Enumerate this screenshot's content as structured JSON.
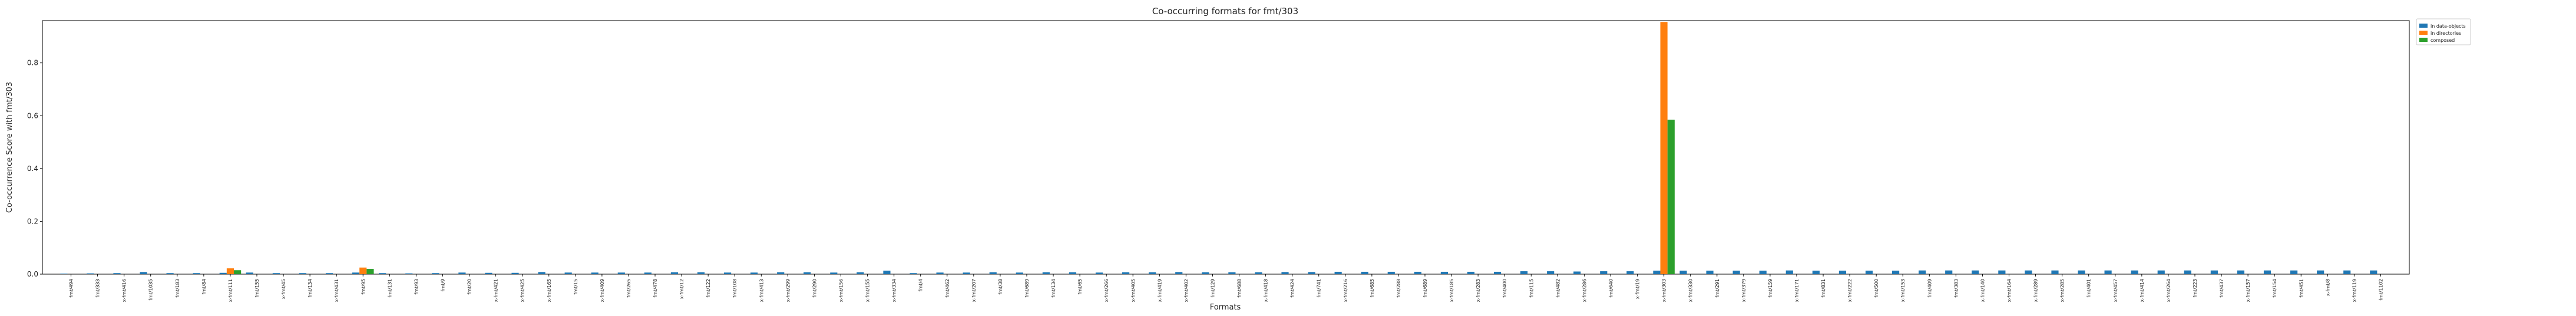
{
  "chart_data": {
    "type": "bar",
    "title": "Co-occurring formats for fmt/303",
    "xlabel": "Formats",
    "ylabel": "Co-occurrence Score with fmt/303",
    "ylim": [
      0,
      0.96
    ],
    "yticks": [
      0.0,
      0.2,
      0.4,
      0.6,
      0.8
    ],
    "ytick_labels": [
      "0.0",
      "0.2",
      "0.4",
      "0.6",
      "0.8"
    ],
    "legend_position": "outside-top-right",
    "colors": {
      "in data-objects": "#1f77b4",
      "in directories": "#ff7f0e",
      "composed": "#2ca02c"
    },
    "categories": [
      "fmt/494",
      "fmt/333",
      "x-fmt/416",
      "fmt/1035",
      "fmt/183",
      "fmt/84",
      "x-fmt/111",
      "fmt/155",
      "x-fmt/45",
      "fmt/134",
      "x-fmt/431",
      "fmt/95",
      "fmt/131",
      "fmt/93",
      "fmt/9",
      "fmt/20",
      "x-fmt/421",
      "x-fmt/425",
      "x-fmt/165",
      "fmt/15",
      "x-fmt/409",
      "fmt/265",
      "fmt/478",
      "x-fmt/12",
      "fmt/122",
      "fmt/108",
      "x-fmt/413",
      "x-fmt/299",
      "fmt/290",
      "x-fmt/156",
      "x-fmt/155",
      "x-fmt/334",
      "fmt/4",
      "fmt/462",
      "x-fmt/207",
      "fmt/38",
      "fmt/689",
      "fmt/134",
      "fmt/65",
      "x-fmt/266",
      "x-fmt/405",
      "x-fmt/419",
      "x-fmt/402",
      "fmt/129",
      "fmt/688",
      "x-fmt/418",
      "fmt/424",
      "fmt/741",
      "x-fmt/216",
      "fmt/685",
      "fmt/288",
      "fmt/689",
      "x-fmt/185",
      "x-fmt/283",
      "fmt/400",
      "fmt/115",
      "fmt/482",
      "x-fmt/286",
      "fmt/640",
      "x-fmt/19",
      "x-fmt/303",
      "x-fmt/330",
      "fmt/291",
      "x-fmt/379",
      "fmt/159",
      "x-fmt/171",
      "fmt/831",
      "x-fmt/222",
      "fmt/500",
      "x-fmt/153",
      "fmt/409",
      "fmt/383",
      "x-fmt/140",
      "x-fmt/164",
      "x-fmt/289",
      "x-fmt/285",
      "fmt/401",
      "x-fmt/457",
      "x-fmt/414",
      "x-fmt/264",
      "fmt/223",
      "fmt/437",
      "x-fmt/157",
      "fmt/154",
      "fmt/451",
      "x-fmt/8",
      "x-fmt/119",
      "fmt/1102"
    ],
    "series": [
      {
        "name": "in data-objects",
        "values": [
          0.002,
          0.003,
          0.004,
          0.008,
          0.004,
          0.004,
          0.005,
          0.006,
          0.004,
          0.004,
          0.004,
          0.006,
          0.004,
          0.003,
          0.004,
          0.006,
          0.005,
          0.005,
          0.008,
          0.006,
          0.006,
          0.006,
          0.006,
          0.007,
          0.007,
          0.006,
          0.006,
          0.007,
          0.007,
          0.006,
          0.007,
          0.013,
          0.004,
          0.006,
          0.006,
          0.007,
          0.006,
          0.007,
          0.007,
          0.006,
          0.007,
          0.007,
          0.008,
          0.007,
          0.007,
          0.007,
          0.008,
          0.008,
          0.009,
          0.009,
          0.009,
          0.009,
          0.009,
          0.009,
          0.009,
          0.011,
          0.011,
          0.01,
          0.011,
          0.011,
          0.013,
          0.013,
          0.013,
          0.013,
          0.013,
          0.014,
          0.013,
          0.013,
          0.013,
          0.013,
          0.014,
          0.014,
          0.014,
          0.014,
          0.014,
          0.014,
          0.014,
          0.014,
          0.014,
          0.014,
          0.014,
          0.014,
          0.014,
          0.014,
          0.014,
          0.014,
          0.014,
          0.014
        ]
      },
      {
        "name": "in directories",
        "values": [
          0,
          0,
          0,
          0,
          0,
          0,
          0.022,
          0,
          0,
          0,
          0,
          0.025,
          0,
          0,
          0,
          0,
          0,
          0,
          0,
          0,
          0,
          0,
          0,
          0,
          0,
          0,
          0,
          0,
          0,
          0,
          0,
          0,
          0,
          0,
          0,
          0,
          0,
          0,
          0,
          0,
          0,
          0,
          0,
          0,
          0,
          0,
          0,
          0,
          0,
          0,
          0,
          0,
          0,
          0,
          0,
          0,
          0,
          0,
          0,
          0,
          0.955,
          0,
          0,
          0,
          0,
          0,
          0,
          0,
          0,
          0,
          0,
          0,
          0,
          0,
          0,
          0,
          0,
          0,
          0,
          0,
          0,
          0,
          0,
          0,
          0,
          0,
          0,
          0
        ]
      },
      {
        "name": "composed",
        "values": [
          0,
          0,
          0,
          0,
          0,
          0,
          0.015,
          0,
          0,
          0,
          0,
          0.02,
          0,
          0,
          0,
          0,
          0,
          0,
          0,
          0,
          0,
          0,
          0,
          0,
          0,
          0,
          0,
          0,
          0,
          0,
          0,
          0,
          0,
          0,
          0,
          0,
          0,
          0,
          0,
          0,
          0,
          0,
          0,
          0,
          0,
          0,
          0,
          0,
          0,
          0,
          0,
          0,
          0,
          0,
          0,
          0,
          0,
          0,
          0,
          0,
          0.585,
          0,
          0,
          0,
          0,
          0,
          0,
          0,
          0,
          0,
          0,
          0,
          0,
          0,
          0,
          0,
          0,
          0,
          0,
          0,
          0,
          0,
          0,
          0,
          0,
          0,
          0,
          0
        ]
      }
    ]
  }
}
